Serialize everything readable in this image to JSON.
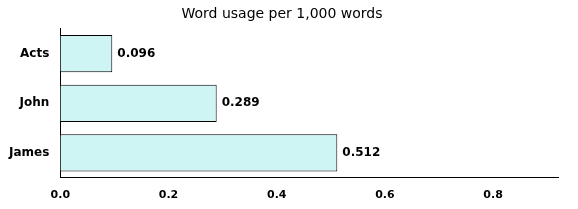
{
  "chart_data": {
    "type": "bar",
    "orientation": "horizontal",
    "title": "Word usage per 1,000 words",
    "categories": [
      "James",
      "John",
      "Acts"
    ],
    "values": [
      0.512,
      0.289,
      0.096
    ],
    "color": "#cff4f4",
    "xlim": [
      0.0,
      0.92
    ],
    "xticks": [
      {
        "value": 0.0,
        "label": "0.0"
      },
      0.2,
      0.4,
      0.6,
      0.8
    ],
    "grid": false,
    "data_labels": true
  }
}
